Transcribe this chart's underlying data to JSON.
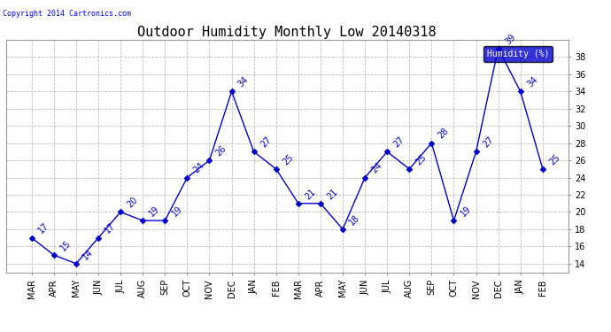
{
  "title": "Outdoor Humidity Monthly Low 20140318",
  "copyright": "Copyright 2014 Cartronics.com",
  "legend_label": "Humidity (%)",
  "labels": [
    "MAR",
    "APR",
    "MAY",
    "JUN",
    "JUL",
    "AUG",
    "SEP",
    "OCT",
    "NOV",
    "DEC",
    "JAN",
    "FEB",
    "MAR",
    "APR",
    "MAY",
    "JUN",
    "JUL",
    "AUG",
    "SEP",
    "OCT",
    "NOV",
    "DEC",
    "JAN",
    "FEB"
  ],
  "values": [
    17,
    15,
    14,
    17,
    20,
    19,
    19,
    24,
    26,
    34,
    27,
    25,
    21,
    21,
    18,
    24,
    27,
    25,
    28,
    19,
    27,
    39,
    34,
    25
  ],
  "line_color": "#0000cc",
  "marker": "D",
  "marker_size": 3,
  "ylim": [
    13,
    40
  ],
  "yticks": [
    14,
    16,
    18,
    20,
    22,
    24,
    26,
    28,
    30,
    32,
    34,
    36,
    38
  ],
  "grid_color": "#bbbbbb",
  "bg_color": "#ffffff",
  "title_fontsize": 11,
  "label_fontsize": 7,
  "annotation_fontsize": 7,
  "legend_bg": "#0000cc",
  "legend_fg": "#ffffff"
}
